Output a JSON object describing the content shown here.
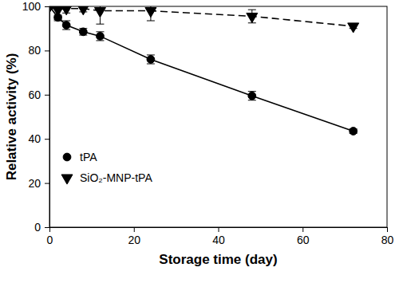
{
  "chart_data": {
    "type": "line",
    "x_label": "Storage time (day)",
    "y_label": "Relative activity (%)",
    "x": [
      0,
      2,
      4,
      8,
      12,
      24,
      48,
      72
    ],
    "series": [
      {
        "name": "tPA",
        "color": "#000000",
        "marker": "circle",
        "line_style": "solid",
        "values": [
          100,
          95,
          91.5,
          88.5,
          86.5,
          76,
          59.5,
          43.5
        ],
        "errors": [
          1,
          1,
          2,
          1.5,
          2,
          2,
          2,
          1
        ]
      },
      {
        "name": "SiO₂-MNP-tPA",
        "color": "#000000",
        "marker": "triangle-down",
        "line_style": "dashed",
        "values": [
          100,
          98.5,
          99,
          99,
          98,
          98,
          95.5,
          91
        ],
        "errors": [
          1,
          5,
          2,
          1.5,
          6,
          4.5,
          3,
          1
        ]
      }
    ],
    "xlim": [
      0,
      80
    ],
    "xticks": [
      0,
      20,
      40,
      60,
      80
    ],
    "ylim": [
      0,
      100
    ],
    "yticks": [
      0,
      20,
      40,
      60,
      80,
      100
    ],
    "legend": "lower left"
  }
}
